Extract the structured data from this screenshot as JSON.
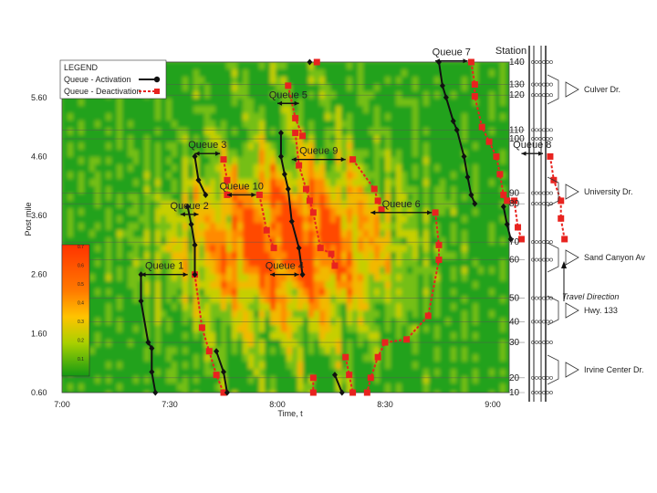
{
  "chart_data": {
    "type": "line",
    "title": "",
    "xlabel": "Time, t",
    "ylabel": "Post mile",
    "x_ticks": [
      "7:00",
      "7:30",
      "8:00",
      "8:30",
      "9:00"
    ],
    "y_ticks": [
      "0.60",
      "1.60",
      "2.60",
      "3.60",
      "4.60",
      "5.60"
    ],
    "xlim_minutes": [
      0,
      120
    ],
    "ylim_postmile": [
      0.6,
      6.2
    ],
    "heatmap_background": true,
    "colorbar_ticks": [
      "0.7",
      "0.6",
      "0.5",
      "0.4",
      "0.3",
      "0.2",
      "0.1"
    ],
    "legend": {
      "title": "LEGEND",
      "activation": "Queue - Activation",
      "deactivation": "Queue - Deactivation",
      "placement": "top-left"
    },
    "stations": [
      {
        "label": "140",
        "pm": 6.2
      },
      {
        "label": "130",
        "pm": 5.82
      },
      {
        "label": "120",
        "pm": 5.64
      },
      {
        "label": "110",
        "pm": 5.05
      },
      {
        "label": "100",
        "pm": 4.9
      },
      {
        "label": "90",
        "pm": 3.98
      },
      {
        "label": "80",
        "pm": 3.8
      },
      {
        "label": "70",
        "pm": 3.15
      },
      {
        "label": "60",
        "pm": 2.85
      },
      {
        "label": "50",
        "pm": 2.2
      },
      {
        "label": "40",
        "pm": 1.8
      },
      {
        "label": "30",
        "pm": 1.45
      },
      {
        "label": "20",
        "pm": 0.85
      },
      {
        "label": "10",
        "pm": 0.6
      }
    ],
    "ramps": [
      "Culver Dr.",
      "University Dr.",
      "Sand Canyon Av",
      "Hwy. 133",
      "Irvine Center Dr."
    ],
    "queue_labels": [
      "Queue 7",
      "Queue 5",
      "Queue 3",
      "Queue 9",
      "Queue 8",
      "Queue 10",
      "Queue 6",
      "Queue 2",
      "Queue 1",
      "Queue 4"
    ],
    "series": [
      {
        "name": "Queue 1 activation",
        "kind": "activation",
        "points": [
          [
            22,
            2.6
          ],
          [
            22,
            2.15
          ],
          [
            24,
            1.45
          ],
          [
            25,
            1.35
          ],
          [
            25,
            0.95
          ],
          [
            26,
            0.6
          ]
        ]
      },
      {
        "name": "Queue 1 deactivation",
        "kind": "deactivation",
        "points": [
          [
            37,
            2.6
          ],
          [
            39,
            1.7
          ],
          [
            41,
            1.3
          ],
          [
            43,
            0.9
          ],
          [
            45,
            0.6
          ]
        ]
      },
      {
        "name": "Queue 2 activation",
        "kind": "activation",
        "points": [
          [
            35,
            3.75
          ],
          [
            36,
            3.45
          ],
          [
            37,
            3.1
          ],
          [
            37,
            2.6
          ]
        ]
      },
      {
        "name": "Queue 2 activation 2",
        "kind": "activation",
        "points": [
          [
            43,
            1.3
          ],
          [
            45,
            0.95
          ],
          [
            46,
            0.6
          ]
        ]
      },
      {
        "name": "Queue 3 activation",
        "kind": "activation",
        "points": [
          [
            37,
            4.6
          ],
          [
            38,
            4.2
          ],
          [
            40,
            3.95
          ]
        ]
      },
      {
        "name": "Queue 3 deactivation",
        "kind": "deactivation",
        "points": [
          [
            45,
            4.55
          ],
          [
            46,
            4.2
          ],
          [
            46,
            3.95
          ]
        ]
      },
      {
        "name": "Queue 10 deactivation",
        "kind": "deactivation",
        "points": [
          [
            55,
            3.95
          ],
          [
            57,
            3.35
          ],
          [
            59,
            3.05
          ]
        ]
      },
      {
        "name": "Queue 4 activation",
        "kind": "activation",
        "points": [
          [
            61,
            5.0
          ],
          [
            61,
            4.6
          ],
          [
            62,
            4.3
          ],
          [
            63,
            4.05
          ],
          [
            64,
            3.5
          ],
          [
            66,
            3.05
          ],
          [
            67,
            2.6
          ]
        ]
      },
      {
        "name": "Queue 4 deactivation",
        "kind": "deactivation",
        "points": [
          [
            65,
            5.0
          ],
          [
            66,
            4.45
          ],
          [
            68,
            4.05
          ],
          [
            69,
            3.85
          ],
          [
            70,
            3.65
          ],
          [
            72,
            3.05
          ],
          [
            75,
            2.95
          ],
          [
            76,
            2.75
          ]
        ]
      },
      {
        "name": "Queue 5 deactivation",
        "kind": "deactivation",
        "points": [
          [
            63,
            5.8
          ],
          [
            65,
            5.25
          ],
          [
            67,
            4.95
          ]
        ]
      },
      {
        "name": "Queue 9 deactivation",
        "kind": "deactivation",
        "points": [
          [
            81,
            4.55
          ],
          [
            87,
            4.05
          ],
          [
            88,
            3.85
          ],
          [
            89,
            3.7
          ]
        ]
      },
      {
        "name": "Queue 6 deactivation",
        "kind": "deactivation",
        "points": [
          [
            104,
            3.65
          ],
          [
            105,
            3.1
          ],
          [
            105,
            2.85
          ],
          [
            102,
            1.9
          ],
          [
            96,
            1.5
          ],
          [
            90,
            1.45
          ],
          [
            88,
            1.2
          ],
          [
            86,
            0.85
          ],
          [
            85,
            0.6
          ]
        ]
      },
      {
        "name": "Queue 7 activation",
        "kind": "activation",
        "points": [
          [
            105,
            6.2
          ],
          [
            106,
            5.8
          ],
          [
            107,
            5.6
          ],
          [
            109,
            5.2
          ],
          [
            110,
            5.05
          ],
          [
            112,
            4.6
          ],
          [
            113,
            4.25
          ],
          [
            114,
            3.95
          ],
          [
            115,
            3.8
          ]
        ]
      },
      {
        "name": "Queue 7 deactivation",
        "kind": "deactivation",
        "points": [
          [
            114,
            6.2
          ],
          [
            115,
            5.82
          ],
          [
            115,
            5.62
          ],
          [
            117,
            5.1
          ],
          [
            119,
            4.85
          ],
          [
            121,
            4.6
          ],
          [
            122,
            4.3
          ],
          [
            123,
            3.95
          ],
          [
            124,
            3.85
          ]
        ]
      },
      {
        "name": "Queue 8 activation",
        "kind": "activation",
        "points": [
          [
            123,
            3.75
          ],
          [
            124,
            3.45
          ],
          [
            125,
            3.2
          ]
        ]
      },
      {
        "name": "Queue 8 deactivation",
        "kind": "deactivation",
        "points": [
          [
            126,
            3.85
          ],
          [
            127,
            3.4
          ],
          [
            128,
            3.2
          ]
        ]
      },
      {
        "name": "Queue 8 branch",
        "kind": "deactivation",
        "points": [
          [
            136,
            4.6
          ],
          [
            137,
            4.2
          ],
          [
            139,
            3.85
          ],
          [
            139,
            3.55
          ],
          [
            140,
            3.2
          ]
        ]
      },
      {
        "name": "Lower queue activation",
        "kind": "activation",
        "points": [
          [
            76,
            0.9
          ],
          [
            78,
            0.6
          ]
        ]
      },
      {
        "name": "Lower queue deactivation",
        "kind": "deactivation",
        "points": [
          [
            79,
            1.2
          ],
          [
            80,
            0.9
          ],
          [
            81,
            0.6
          ]
        ]
      },
      {
        "name": "Lower queue 2 deactivation",
        "kind": "deactivation",
        "points": [
          [
            70,
            0.85
          ],
          [
            70,
            0.6
          ]
        ]
      }
    ],
    "durations": [
      {
        "label": "Queue 7",
        "t1": 104,
        "t2": 113,
        "pm": 6.22
      },
      {
        "label": "Queue 5",
        "t1": 60,
        "t2": 66,
        "pm": 5.5
      },
      {
        "label": "Queue 3",
        "t1": 37,
        "t2": 44,
        "pm": 4.65
      },
      {
        "label": "Queue 9",
        "t1": 64,
        "t2": 79,
        "pm": 4.55
      },
      {
        "label": "Queue 8",
        "t1": 128,
        "t2": 134,
        "pm": 4.65
      },
      {
        "label": "Queue 10",
        "t1": 46,
        "t2": 54,
        "pm": 3.95
      },
      {
        "label": "Queue 6",
        "t1": 86,
        "t2": 103,
        "pm": 3.65
      },
      {
        "label": "Queue 2",
        "t1": 33,
        "t2": 38,
        "pm": 3.62
      },
      {
        "label": "Queue 1",
        "t1": 22,
        "t2": 35,
        "pm": 2.6
      },
      {
        "label": "Queue 4",
        "t1": 58,
        "t2": 66,
        "pm": 2.6
      }
    ],
    "markers": [
      {
        "kind": "activation",
        "t": 69,
        "pm": 6.2
      },
      {
        "kind": "deactivation",
        "t": 71,
        "pm": 6.2
      }
    ],
    "travel_direction": "Travel Direction",
    "station_header": "Station"
  },
  "colors": {
    "activation": "#111111",
    "deactivation": "#e8231f",
    "low": "#1a9e1a",
    "mid": "#f5c400",
    "high": "#ff3c00"
  }
}
